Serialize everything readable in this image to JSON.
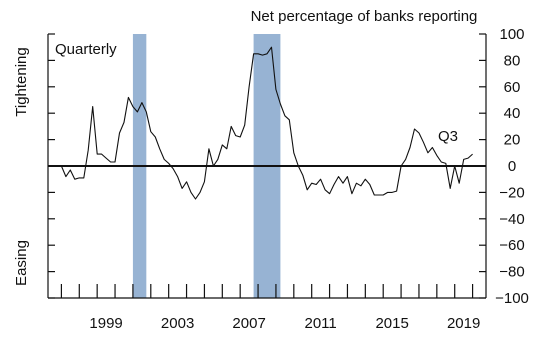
{
  "chart_data": {
    "type": "line",
    "title": "Net percentage of banks reporting",
    "ylabel_top": "Tightening",
    "ylabel_bottom": "Easing",
    "frequency_label": "Quarterly",
    "end_label": "Q3",
    "ylim": [
      -100,
      100
    ],
    "y_ticks": [
      100,
      80,
      60,
      40,
      20,
      0,
      -20,
      -40,
      -60,
      -80,
      -100
    ],
    "xlim": [
      1996.25,
      2020.75
    ],
    "x_tick_labels": [
      "1999",
      "2003",
      "2007",
      "2011",
      "2015",
      "2019"
    ],
    "x_tick_values": [
      1999,
      2003,
      2007,
      2011,
      2015,
      2019
    ],
    "zero_line": true,
    "grid": false,
    "colors": {
      "line": "#111111",
      "shade": "#97b3d3",
      "axis": "#111111"
    },
    "recessions": [
      {
        "start": 2001.0,
        "end": 2001.75
      },
      {
        "start": 2007.75,
        "end": 2009.25
      }
    ],
    "series": [
      {
        "x": [
          1997.0,
          1997.25,
          1997.5,
          1997.75,
          1998.0,
          1998.25,
          1998.5,
          1998.75,
          1999.0,
          1999.25,
          1999.5,
          1999.75,
          2000.0,
          2000.25,
          2000.5,
          2000.75,
          2001.0,
          2001.25,
          2001.5,
          2001.75,
          2002.0,
          2002.25,
          2002.5,
          2002.75,
          2003.0,
          2003.25,
          2003.5,
          2003.75,
          2004.0,
          2004.25,
          2004.5,
          2004.75,
          2005.0,
          2005.25,
          2005.5,
          2005.75,
          2006.0,
          2006.25,
          2006.5,
          2006.75,
          2007.0,
          2007.25,
          2007.5,
          2007.75,
          2008.0,
          2008.25,
          2008.5,
          2008.75,
          2009.0,
          2009.25,
          2009.5,
          2009.75,
          2010.0,
          2010.25,
          2010.5,
          2010.75,
          2011.0,
          2011.25,
          2011.5,
          2011.75,
          2012.0,
          2012.25,
          2012.5,
          2012.75,
          2013.0,
          2013.25,
          2013.5,
          2013.75,
          2014.0,
          2014.25,
          2014.5,
          2014.75,
          2015.0,
          2015.25,
          2015.5,
          2015.75,
          2016.0,
          2016.25,
          2016.5,
          2016.75,
          2017.0,
          2017.25,
          2017.5,
          2017.75,
          2018.0,
          2018.25,
          2018.5,
          2018.75,
          2019.0,
          2019.25,
          2019.5,
          2019.75,
          2020.0
        ],
        "values": [
          0,
          -8,
          -3,
          -10,
          -9,
          -9,
          12,
          45,
          9,
          9,
          6,
          3,
          3,
          25,
          33,
          52,
          45,
          41,
          48,
          41,
          26,
          22,
          13,
          5,
          2,
          -2,
          -8,
          -17,
          -12,
          -20,
          -25,
          -20,
          -12,
          13,
          0,
          5,
          16,
          13,
          30,
          23,
          22,
          31,
          60,
          85,
          85,
          84,
          85,
          90,
          58,
          47,
          38,
          35,
          10,
          0,
          -7,
          -18,
          -13,
          -14,
          -10,
          -18,
          -21,
          -14,
          -8,
          -13,
          -8,
          -21,
          -13,
          -15,
          -10,
          -14,
          -22,
          -22,
          -22,
          -20,
          -20,
          -19,
          0,
          5,
          14,
          28,
          25,
          18,
          10,
          14,
          8,
          3,
          2,
          -17,
          0,
          -13,
          5,
          6,
          9
        ]
      }
    ]
  }
}
